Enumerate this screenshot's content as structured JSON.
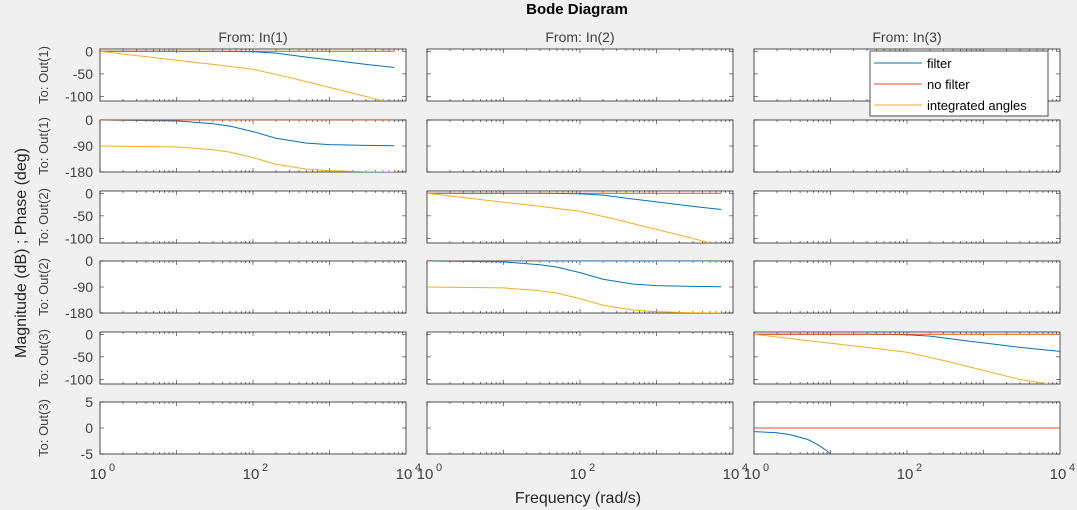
{
  "chart_data": {
    "type": "line",
    "title": "Bode Diagram",
    "xlabel": "Frequency  (rad/s)",
    "ylabel": "Magnitude (dB) ; Phase (deg)",
    "x_scale": "log",
    "xlim": [
      1,
      10000
    ],
    "x_ticks": [
      1,
      100,
      10000
    ],
    "x_tick_labels": [
      {
        "base": "10",
        "exp": "0"
      },
      {
        "base": "10",
        "exp": "2"
      },
      {
        "base": "10",
        "exp": "4"
      }
    ],
    "column_titles": [
      "From: In(1)",
      "From: In(2)",
      "From: In(3)"
    ],
    "row_labels": [
      "To: Out(1)",
      "To: Out(1)",
      "To: Out(2)",
      "To: Out(2)",
      "To: Out(3)",
      "To: Out(3)"
    ],
    "rows": [
      {
        "kind": "magnitude",
        "ylim": [
          -110,
          5
        ],
        "yticks": [
          0,
          -50,
          -100
        ]
      },
      {
        "kind": "phase",
        "ylim": [
          -180,
          0
        ],
        "yticks": [
          0,
          -90,
          -180
        ]
      },
      {
        "kind": "magnitude",
        "ylim": [
          -110,
          5
        ],
        "yticks": [
          0,
          -50,
          -100
        ]
      },
      {
        "kind": "phase",
        "ylim": [
          -180,
          0
        ],
        "yticks": [
          0,
          -90,
          -180
        ]
      },
      {
        "kind": "magnitude",
        "ylim": [
          -110,
          5
        ],
        "yticks": [
          0,
          -50,
          -100
        ]
      },
      {
        "kind": "phase",
        "ylim": [
          -5,
          5
        ],
        "yticks": [
          5,
          0,
          -5
        ]
      }
    ],
    "legend": {
      "position": "top-right",
      "entries": [
        "filter",
        "no filter",
        "integrated angles"
      ]
    },
    "series_colors": {
      "filter": "#0072BD",
      "no filter": "#D95319",
      "integrated angles": "#EDB120"
    },
    "grid": false,
    "series": [
      {
        "name": "filter",
        "panel": [
          0,
          0
        ],
        "x": [
          1,
          10,
          30,
          100,
          200,
          500,
          1000,
          3000,
          7000
        ],
        "y": [
          0,
          0,
          0,
          -1,
          -4,
          -13,
          -19,
          -29,
          -36
        ]
      },
      {
        "name": "no filter",
        "panel": [
          0,
          0
        ],
        "x": [
          1,
          7000
        ],
        "y": [
          0,
          0
        ]
      },
      {
        "name": "integrated angles",
        "panel": [
          0,
          0
        ],
        "x": [
          1,
          10,
          30,
          100,
          300,
          1000,
          3000,
          5000
        ],
        "y": [
          0,
          -20,
          -29,
          -40,
          -58,
          -80,
          -100,
          -110
        ]
      },
      {
        "name": "filter",
        "panel": [
          1,
          0
        ],
        "x": [
          1,
          10,
          30,
          50,
          100,
          200,
          500,
          1000,
          3000,
          7000
        ],
        "y": [
          0,
          -3,
          -13,
          -21,
          -40,
          -63,
          -80,
          -85,
          -88,
          -89
        ]
      },
      {
        "name": "no filter",
        "panel": [
          1,
          0
        ],
        "x": [
          1,
          7000
        ],
        "y": [
          0,
          0
        ]
      },
      {
        "name": "integrated angles",
        "panel": [
          1,
          0
        ],
        "x": [
          1,
          10,
          30,
          50,
          100,
          200,
          500,
          1000,
          3000,
          7000
        ],
        "y": [
          -90,
          -93,
          -103,
          -111,
          -130,
          -153,
          -170,
          -175,
          -179,
          -180
        ]
      },
      {
        "name": "filter",
        "panel": [
          2,
          1
        ],
        "x": [
          1,
          10,
          30,
          100,
          200,
          500,
          1000,
          3000,
          7000
        ],
        "y": [
          0,
          0,
          0,
          -1,
          -4,
          -13,
          -19,
          -29,
          -36
        ]
      },
      {
        "name": "no filter",
        "panel": [
          2,
          1
        ],
        "x": [
          1,
          7000
        ],
        "y": [
          0,
          0
        ]
      },
      {
        "name": "integrated angles",
        "panel": [
          2,
          1
        ],
        "x": [
          1,
          10,
          30,
          100,
          300,
          1000,
          3000,
          5000
        ],
        "y": [
          0,
          -20,
          -29,
          -40,
          -58,
          -80,
          -100,
          -110
        ]
      },
      {
        "name": "filter",
        "panel": [
          3,
          1
        ],
        "x": [
          1,
          10,
          30,
          50,
          100,
          200,
          500,
          1000,
          3000,
          7000
        ],
        "y": [
          0,
          -3,
          -13,
          -21,
          -40,
          -63,
          -80,
          -85,
          -88,
          -89
        ]
      },
      {
        "name": "no filter",
        "panel": [
          3,
          1
        ],
        "x": [
          1,
          7000
        ],
        "y": [
          0,
          0
        ]
      },
      {
        "name": "integrated angles",
        "panel": [
          3,
          1
        ],
        "x": [
          1,
          10,
          30,
          50,
          100,
          200,
          500,
          1000,
          3000,
          7000
        ],
        "y": [
          -90,
          -93,
          -103,
          -111,
          -130,
          -153,
          -170,
          -175,
          -179,
          -180
        ]
      },
      {
        "name": "filter",
        "panel": [
          4,
          2
        ],
        "x": [
          1,
          10,
          30,
          100,
          200,
          500,
          1000,
          3000,
          10000
        ],
        "y": [
          0,
          0,
          0,
          -1,
          -4,
          -13,
          -19,
          -29,
          -38
        ]
      },
      {
        "name": "no filter",
        "panel": [
          4,
          2
        ],
        "x": [
          1,
          10000
        ],
        "y": [
          0,
          0
        ]
      },
      {
        "name": "integrated angles",
        "panel": [
          4,
          2
        ],
        "x": [
          1,
          10,
          30,
          100,
          300,
          1000,
          3000,
          7000
        ],
        "y": [
          0,
          -20,
          -29,
          -40,
          -58,
          -80,
          -100,
          -110
        ]
      },
      {
        "name": "filter",
        "panel": [
          5,
          2
        ],
        "x": [
          1,
          2,
          3,
          5,
          7,
          9,
          11
        ],
        "y": [
          -0.7,
          -0.9,
          -1.3,
          -2.2,
          -3.3,
          -4.4,
          -5.5
        ]
      },
      {
        "name": "no filter",
        "panel": [
          5,
          2
        ],
        "x": [
          1,
          10000
        ],
        "y": [
          0,
          0
        ]
      }
    ]
  }
}
